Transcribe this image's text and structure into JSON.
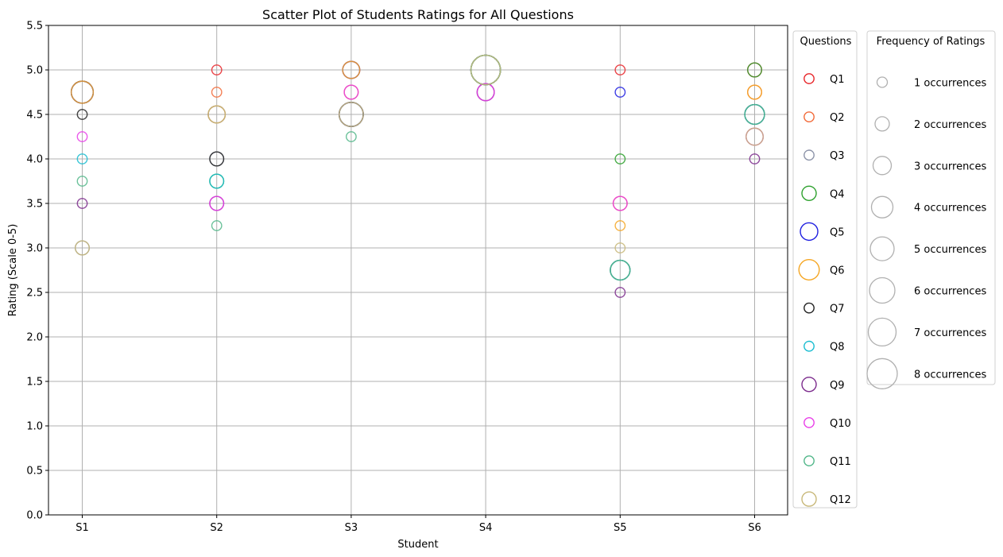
{
  "chart_data": {
    "type": "scatter",
    "title": "Scatter Plot of Students Ratings for All Questions",
    "xlabel": "Student",
    "ylabel": "Rating (Scale 0-5)",
    "categories": [
      "S1",
      "S2",
      "S3",
      "S4",
      "S5",
      "S6"
    ],
    "ylim": [
      0,
      5.5
    ],
    "yticks": [
      "0.0",
      "0.5",
      "1.0",
      "1.5",
      "2.0",
      "2.5",
      "3.0",
      "3.5",
      "4.0",
      "4.5",
      "5.0",
      "5.5"
    ],
    "grid": true,
    "series": [
      {
        "name": "Q1",
        "color": "#e8262a",
        "values": [
          4.75,
          5.0,
          5.0,
          5.0,
          5.0,
          5.0
        ]
      },
      {
        "name": "Q2",
        "color": "#f26b3a",
        "values": [
          4.75,
          4.75,
          4.75,
          5.0,
          3.5,
          4.75
        ]
      },
      {
        "name": "Q3",
        "color": "#8c93a8",
        "values": [
          3.0,
          4.0,
          4.5,
          4.75,
          2.75,
          4.25
        ]
      },
      {
        "name": "Q4",
        "color": "#2ca02c",
        "values": [
          4.75,
          3.75,
          4.5,
          5.0,
          4.0,
          5.0
        ]
      },
      {
        "name": "Q5",
        "color": "#1f1fe0",
        "values": [
          4.75,
          4.5,
          5.0,
          5.0,
          4.75,
          4.5
        ]
      },
      {
        "name": "Q6",
        "color": "#f5a623",
        "values": [
          4.75,
          4.5,
          5.0,
          5.0,
          3.25,
          4.75
        ]
      },
      {
        "name": "Q7",
        "color": "#222222",
        "values": [
          4.5,
          4.0,
          4.5,
          5.0,
          2.75,
          4.5
        ]
      },
      {
        "name": "Q8",
        "color": "#17bcd0",
        "values": [
          4.0,
          3.75,
          4.5,
          5.0,
          2.75,
          4.5
        ]
      },
      {
        "name": "Q9",
        "color": "#7b2a8c",
        "values": [
          3.5,
          3.5,
          4.5,
          4.75,
          2.5,
          4.0
        ]
      },
      {
        "name": "Q10",
        "color": "#e83ee8",
        "values": [
          4.25,
          3.5,
          4.75,
          4.75,
          3.5,
          4.25
        ]
      },
      {
        "name": "Q11",
        "color": "#52b78a",
        "values": [
          3.75,
          3.25,
          4.25,
          5.0,
          2.75,
          4.5
        ]
      },
      {
        "name": "Q12",
        "color": "#c8b879",
        "values": [
          3.0,
          4.5,
          4.5,
          5.0,
          3.0,
          4.25
        ]
      }
    ],
    "legend_questions": {
      "title": "Questions",
      "placement": "right"
    },
    "legend_frequency": {
      "title": "Frequency of Ratings",
      "color": "#b0b0b0",
      "entries": [
        {
          "label": "1 occurrences",
          "count": 1
        },
        {
          "label": "2 occurrences",
          "count": 2
        },
        {
          "label": "3 occurrences",
          "count": 3
        },
        {
          "label": "4 occurrences",
          "count": 4
        },
        {
          "label": "5 occurrences",
          "count": 5
        },
        {
          "label": "6 occurrences",
          "count": 6
        },
        {
          "label": "7 occurrences",
          "count": 7
        },
        {
          "label": "8 occurrences",
          "count": 8
        }
      ],
      "placement": "far-right"
    }
  }
}
